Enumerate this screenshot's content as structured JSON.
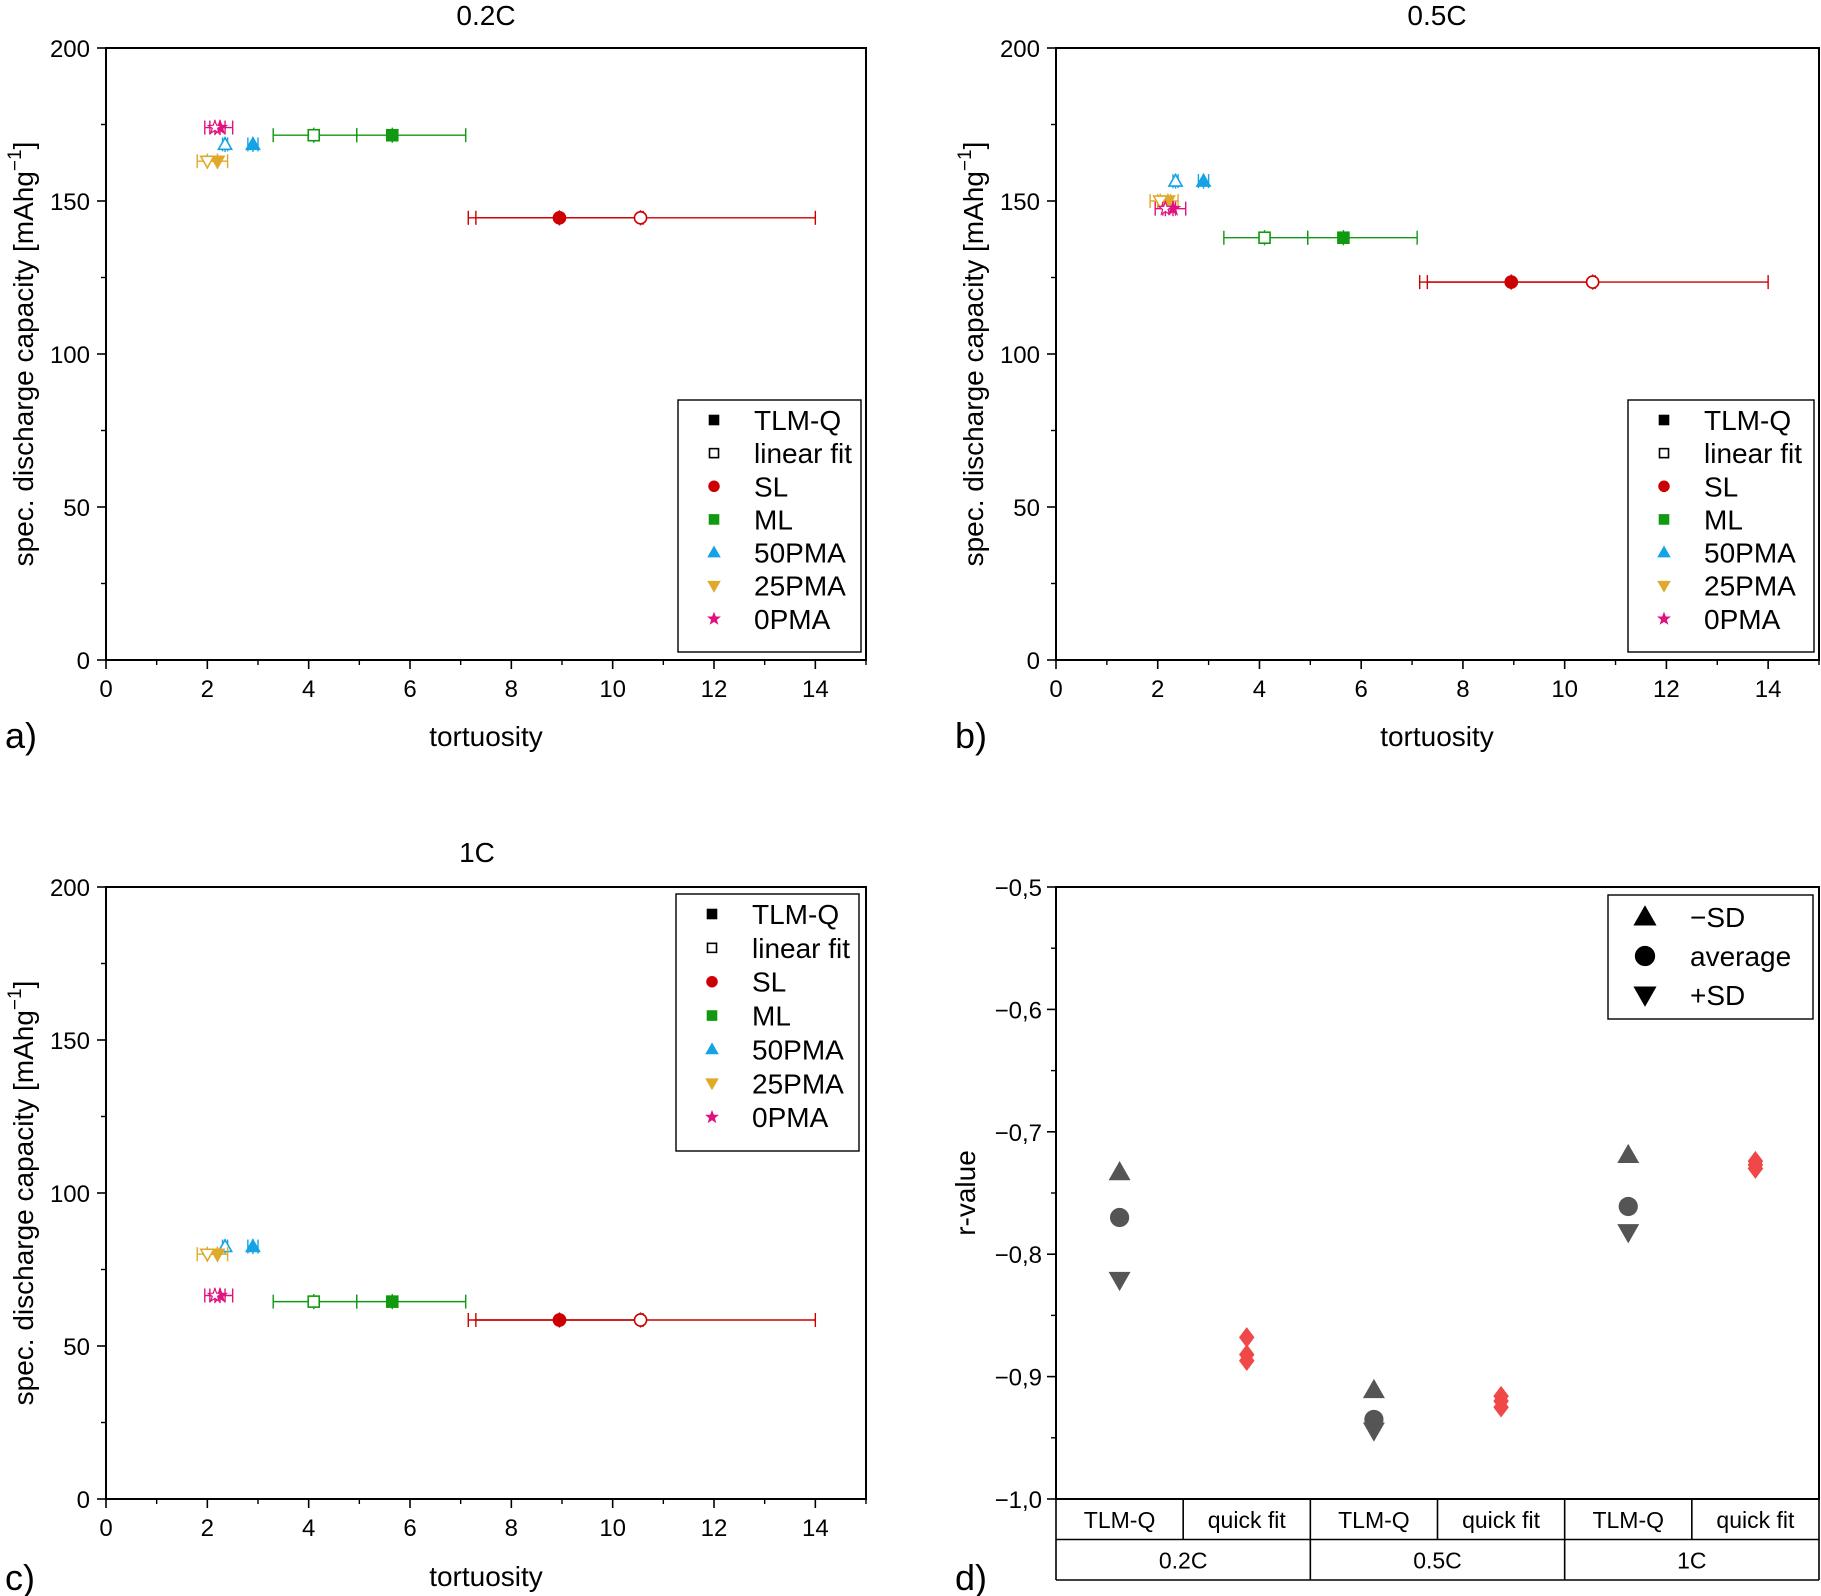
{
  "colors": {
    "SL": "#cc0000",
    "ML": "#119911",
    "50PMA": "#15a3e6",
    "25PMA": "#e0a92a",
    "0PMA": "#e0127f",
    "TLM-Q": "#000000",
    "linear fit": "#000000",
    "stat_gray": "#555555",
    "stat_red": "#f04848"
  },
  "chart_data": [
    {
      "type": "scatter",
      "panel_label": "a)",
      "title": "0.2C",
      "xlabel": "tortuosity",
      "ylabel": "spec. discharge capacity [mAhg",
      "ylabel_sup": "−1",
      "ylabel_end": "]",
      "xlim": [
        0,
        15
      ],
      "ylim": [
        0,
        200
      ],
      "xticks": [
        0,
        2,
        4,
        6,
        8,
        10,
        12,
        14
      ],
      "yticks": [
        0,
        50,
        100,
        150,
        200
      ],
      "xtick_labels": [
        "0",
        "2",
        "4",
        "6",
        "8",
        "10",
        "12",
        "14"
      ],
      "ytick_labels": [
        "0",
        "50",
        "100",
        "150",
        "200"
      ],
      "legend_position": "bottom-right",
      "legend": [
        "TLM-Q",
        "linear fit",
        "SL",
        "ML",
        "50PMA",
        "25PMA",
        "0PMA"
      ],
      "series": [
        {
          "name": "SL",
          "points": [
            {
              "method": "TLM-Q",
              "x": 8.95,
              "y": 144.5,
              "xerr": [
                7.3,
                10.6
              ],
              "yerr": 1.5
            },
            {
              "method": "linear fit",
              "x": 10.55,
              "y": 144.5,
              "xerr": [
                7.15,
                14.0
              ],
              "yerr": 1.5
            }
          ]
        },
        {
          "name": "ML",
          "points": [
            {
              "method": "TLM-Q",
              "x": 5.65,
              "y": 171.5,
              "xerr": [
                4.95,
                7.1
              ],
              "yerr": 1.5
            },
            {
              "method": "linear fit",
              "x": 4.1,
              "y": 171.5,
              "xerr": [
                3.3,
                4.95
              ],
              "yerr": 1.5
            }
          ]
        },
        {
          "name": "50PMA",
          "points": [
            {
              "method": "TLM-Q",
              "x": 2.9,
              "y": 168.5,
              "xerr": [
                2.8,
                3.0
              ],
              "yerr": 1.5
            },
            {
              "method": "linear fit",
              "x": 2.35,
              "y": 168.5,
              "xerr": [
                2.3,
                2.4
              ],
              "yerr": 1.5
            }
          ]
        },
        {
          "name": "25PMA",
          "points": [
            {
              "method": "TLM-Q",
              "x": 2.2,
              "y": 163,
              "xerr": [
                2.0,
                2.4
              ],
              "yerr": 1.5
            },
            {
              "method": "linear fit",
              "x": 2.0,
              "y": 163,
              "xerr": [
                1.8,
                2.2
              ],
              "yerr": 1.5
            }
          ]
        },
        {
          "name": "0PMA",
          "points": [
            {
              "method": "TLM-Q",
              "x": 2.25,
              "y": 174,
              "xerr": [
                2.05,
                2.5
              ],
              "yerr": 1.5
            },
            {
              "method": "linear fit",
              "x": 2.15,
              "y": 174,
              "xerr": [
                1.95,
                2.35
              ],
              "yerr": 1.5
            }
          ]
        }
      ]
    },
    {
      "type": "scatter",
      "panel_label": "b)",
      "title": "0.5C",
      "xlabel": "tortuosity",
      "ylabel": "spec. discharge capacity [mAhg",
      "ylabel_sup": "−1",
      "ylabel_end": "]",
      "xlim": [
        0,
        15
      ],
      "ylim": [
        0,
        200
      ],
      "xticks": [
        0,
        2,
        4,
        6,
        8,
        10,
        12,
        14
      ],
      "yticks": [
        0,
        50,
        100,
        150,
        200
      ],
      "xtick_labels": [
        "0",
        "2",
        "4",
        "6",
        "8",
        "10",
        "12",
        "14"
      ],
      "ytick_labels": [
        "0",
        "50",
        "100",
        "150",
        "200"
      ],
      "legend_position": "bottom-right",
      "legend": [
        "TLM-Q",
        "linear fit",
        "SL",
        "ML",
        "50PMA",
        "25PMA",
        "0PMA"
      ],
      "series": [
        {
          "name": "SL",
          "points": [
            {
              "method": "TLM-Q",
              "x": 8.95,
              "y": 123.5,
              "xerr": [
                7.3,
                10.6
              ],
              "yerr": 1.5
            },
            {
              "method": "linear fit",
              "x": 10.55,
              "y": 123.5,
              "xerr": [
                7.15,
                14.0
              ],
              "yerr": 1.5
            }
          ]
        },
        {
          "name": "ML",
          "points": [
            {
              "method": "TLM-Q",
              "x": 5.65,
              "y": 138,
              "xerr": [
                4.95,
                7.1
              ],
              "yerr": 1.5
            },
            {
              "method": "linear fit",
              "x": 4.1,
              "y": 138,
              "xerr": [
                3.3,
                4.95
              ],
              "yerr": 1.5
            }
          ]
        },
        {
          "name": "50PMA",
          "points": [
            {
              "method": "TLM-Q",
              "x": 2.9,
              "y": 156.5,
              "xerr": [
                2.8,
                3.0
              ],
              "yerr": 1.5
            },
            {
              "method": "linear fit",
              "x": 2.35,
              "y": 156.5,
              "xerr": [
                2.3,
                2.4
              ],
              "yerr": 1.5
            }
          ]
        },
        {
          "name": "25PMA",
          "points": [
            {
              "method": "TLM-Q",
              "x": 2.2,
              "y": 150,
              "xerr": [
                2.0,
                2.4
              ],
              "yerr": 1.5
            },
            {
              "method": "linear fit",
              "x": 2.05,
              "y": 150,
              "xerr": [
                1.85,
                2.25
              ],
              "yerr": 1.5
            }
          ]
        },
        {
          "name": "0PMA",
          "points": [
            {
              "method": "TLM-Q",
              "x": 2.3,
              "y": 147.5,
              "xerr": [
                2.1,
                2.55
              ],
              "yerr": 1.5
            },
            {
              "method": "linear fit",
              "x": 2.15,
              "y": 147.5,
              "xerr": [
                1.95,
                2.35
              ],
              "yerr": 1.5
            }
          ]
        }
      ]
    },
    {
      "type": "scatter",
      "panel_label": "c)",
      "title": "1C",
      "xlabel": "tortuosity",
      "ylabel": "spec. discharge capacity [mAhg",
      "ylabel_sup": "−1",
      "ylabel_end": "]",
      "xlim": [
        0,
        15
      ],
      "ylim": [
        0,
        200
      ],
      "xticks": [
        0,
        2,
        4,
        6,
        8,
        10,
        12,
        14
      ],
      "yticks": [
        0,
        50,
        100,
        150,
        200
      ],
      "xtick_labels": [
        "0",
        "2",
        "4",
        "6",
        "8",
        "10",
        "12",
        "14"
      ],
      "ytick_labels": [
        "0",
        "50",
        "100",
        "150",
        "200"
      ],
      "legend_position": "top-right",
      "legend": [
        "TLM-Q",
        "linear fit",
        "SL",
        "ML",
        "50PMA",
        "25PMA",
        "0PMA"
      ],
      "series": [
        {
          "name": "SL",
          "points": [
            {
              "method": "TLM-Q",
              "x": 8.95,
              "y": 58.5,
              "xerr": [
                7.3,
                10.6
              ],
              "yerr": 1.5
            },
            {
              "method": "linear fit",
              "x": 10.55,
              "y": 58.5,
              "xerr": [
                7.15,
                14.0
              ],
              "yerr": 1.5
            }
          ]
        },
        {
          "name": "ML",
          "points": [
            {
              "method": "TLM-Q",
              "x": 5.65,
              "y": 64.5,
              "xerr": [
                4.95,
                7.1
              ],
              "yerr": 1.5
            },
            {
              "method": "linear fit",
              "x": 4.1,
              "y": 64.5,
              "xerr": [
                3.3,
                4.95
              ],
              "yerr": 1.5
            }
          ]
        },
        {
          "name": "50PMA",
          "points": [
            {
              "method": "TLM-Q",
              "x": 2.9,
              "y": 82.5,
              "xerr": [
                2.8,
                3.0
              ],
              "yerr": 1.5
            },
            {
              "method": "linear fit",
              "x": 2.35,
              "y": 82.5,
              "xerr": [
                2.3,
                2.4
              ],
              "yerr": 1.5
            }
          ]
        },
        {
          "name": "25PMA",
          "points": [
            {
              "method": "TLM-Q",
              "x": 2.2,
              "y": 80,
              "xerr": [
                2.0,
                2.4
              ],
              "yerr": 1.5
            },
            {
              "method": "linear fit",
              "x": 2.0,
              "y": 80,
              "xerr": [
                1.8,
                2.2
              ],
              "yerr": 1.5
            }
          ]
        },
        {
          "name": "0PMA",
          "points": [
            {
              "method": "TLM-Q",
              "x": 2.25,
              "y": 66.5,
              "xerr": [
                2.05,
                2.5
              ],
              "yerr": 1.5
            },
            {
              "method": "linear fit",
              "x": 2.15,
              "y": 66.5,
              "xerr": [
                1.95,
                2.35
              ],
              "yerr": 1.5
            }
          ]
        }
      ]
    },
    {
      "type": "scatter",
      "panel_label": "d)",
      "title": "",
      "xlabel": "",
      "ylabel": "r-value",
      "ylim": [
        -1.0,
        -0.5
      ],
      "yticks": [
        -1.0,
        -0.9,
        -0.8,
        -0.7,
        -0.6,
        -0.5
      ],
      "ytick_labels": [
        "−1,0",
        "−0,9",
        "−0,8",
        "−0,7",
        "−0,6",
        "−0,5"
      ],
      "legend_position": "top-right",
      "legend": [
        "−SD",
        "average",
        "+SD"
      ],
      "categories": [
        "TLM-Q",
        "quick fit",
        "TLM-Q",
        "quick fit",
        "TLM-Q",
        "quick fit"
      ],
      "groups": [
        "0.2C",
        "0.5C",
        "1C"
      ],
      "series": [
        {
          "name": "−SD",
          "values": [
            -0.733,
            -0.868,
            -0.911,
            -0.916,
            -0.719,
            -0.724
          ]
        },
        {
          "name": "average",
          "values": [
            -0.77,
            -0.882,
            -0.935,
            -0.92,
            -0.761,
            -0.727
          ]
        },
        {
          "name": "+SD",
          "values": [
            -0.821,
            -0.887,
            -0.944,
            -0.925,
            -0.782,
            -0.73
          ]
        }
      ]
    }
  ]
}
